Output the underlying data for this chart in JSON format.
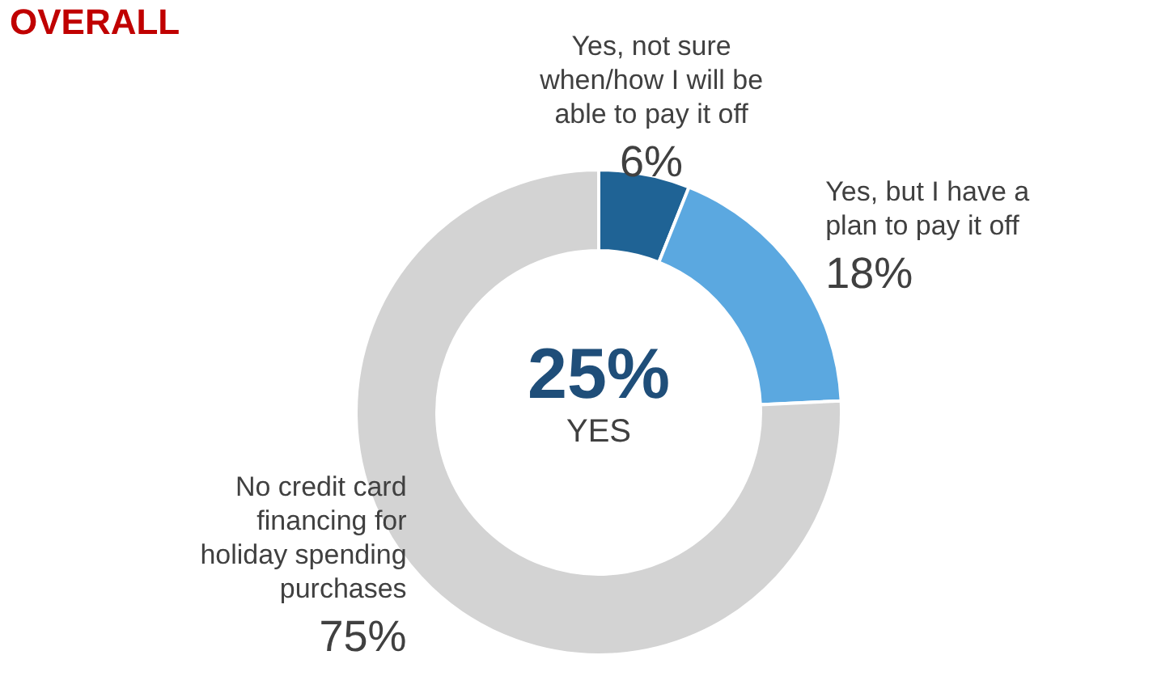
{
  "chart_data": {
    "type": "donut",
    "title": "OVERALL",
    "categories": [
      "Yes, not sure when/how I will be able to pay it off",
      "Yes, but I have a plan to pay it off",
      "No credit card financing for holiday spending purchases"
    ],
    "values": [
      6,
      18,
      75
    ],
    "colors": [
      "#1f6395",
      "#5ba8e0",
      "#d3d3d3"
    ],
    "value_labels": [
      "6%",
      "18%",
      "75%"
    ],
    "annotations": [
      "25%",
      "YES"
    ]
  }
}
